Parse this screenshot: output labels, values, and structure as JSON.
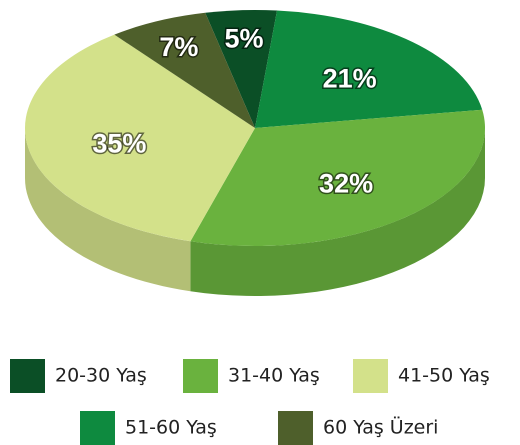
{
  "chart_data": {
    "type": "pie",
    "categories": [
      "20-30 Yaş",
      "51-60 Yaş",
      "31-40 Yaş",
      "41-50 Yaş",
      "60 Yaş Üzeri"
    ],
    "values": [
      5,
      21,
      32,
      35,
      7
    ],
    "value_labels": [
      "5%",
      "21%",
      "32%",
      "35%",
      "7%"
    ],
    "colors": [
      "#0b4f26",
      "#0e8a3f",
      "#6ab23e",
      "#d3e18a",
      "#4e5f2b"
    ]
  }
}
